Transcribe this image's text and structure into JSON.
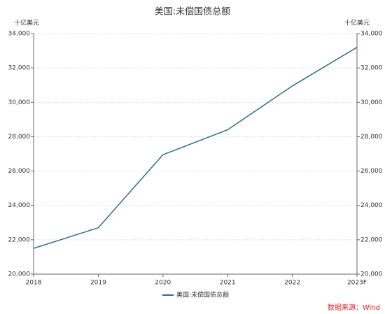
{
  "chart_data": {
    "type": "line",
    "title": "美国:未偿国债总额",
    "y_label": "十亿美元",
    "y2_label": "十亿美元",
    "categories": [
      "2018",
      "2019",
      "2020",
      "2021",
      "2022",
      "2023F"
    ],
    "series": [
      {
        "name": "美国:未偿国债总额",
        "color": "#2f6f8a",
        "values": [
          21500,
          22700,
          26950,
          28400,
          30950,
          33200
        ]
      }
    ],
    "ylim": [
      20000,
      34000
    ],
    "yticks": [
      {
        "value": 20000,
        "label": "20,000"
      },
      {
        "value": 22000,
        "label": "22,000"
      },
      {
        "value": 24000,
        "label": "24,000"
      },
      {
        "value": 26000,
        "label": "26,000"
      },
      {
        "value": 28000,
        "label": "28,000"
      },
      {
        "value": 30000,
        "label": "30,000"
      },
      {
        "value": 32000,
        "label": "32,000"
      },
      {
        "value": 34000,
        "label": "34,000"
      }
    ],
    "y2lim": [
      20000,
      34000
    ],
    "y2ticks": [
      {
        "value": 20000,
        "label": "20,000"
      },
      {
        "value": 22000,
        "label": "22,000"
      },
      {
        "value": 24000,
        "label": "24,000"
      },
      {
        "value": 26000,
        "label": "26,000"
      },
      {
        "value": 28000,
        "label": "28,000"
      },
      {
        "value": 30000,
        "label": "30,000"
      },
      {
        "value": 32000,
        "label": "32,000"
      },
      {
        "value": 34000,
        "label": "34,000"
      }
    ],
    "grid": true,
    "legend": "bottom",
    "source": "数据来源：Wind"
  }
}
